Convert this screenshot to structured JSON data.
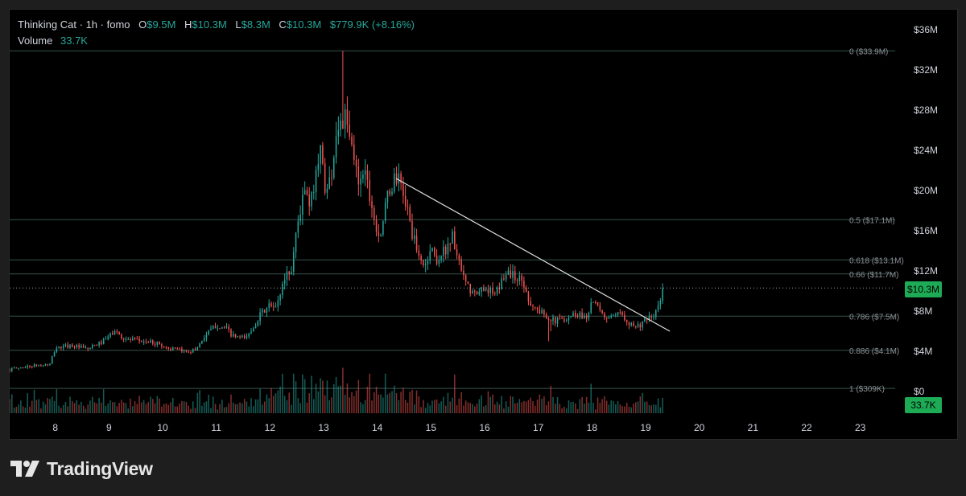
{
  "legend": {
    "symbol": "Thinking Cat",
    "interval": "1h",
    "source": "fomo",
    "open_key": "O",
    "open": "$9.5M",
    "high_key": "H",
    "high": "$10.3M",
    "low_key": "L",
    "low": "$8.3M",
    "close_key": "C",
    "close": "$10.3M",
    "change": "$779.9K (+8.16%)",
    "volume_label": "Volume",
    "volume": "33.7K"
  },
  "colors": {
    "up": "#26a69a",
    "down": "#ef5350",
    "background": "#000000",
    "page_background": "#1e1e1e",
    "fib_line": "#35524b",
    "trend_line": "#e0e0e0",
    "label_green": "#1dab55"
  },
  "badges": {
    "price": "$10.3M",
    "volume": "33.7K"
  },
  "brand": {
    "name": "TradingView",
    "logo": "tradingview-logo-icon"
  },
  "chart_data": {
    "type": "candlestick",
    "interval_hours": 1,
    "y_axis": {
      "unit": "USD market cap",
      "range": [
        0,
        36000000
      ],
      "ticks": [
        0,
        4000000,
        8000000,
        12000000,
        16000000,
        20000000,
        24000000,
        28000000,
        32000000,
        36000000
      ],
      "tick_labels": [
        "$0",
        "$4M",
        "$8M",
        "$12M",
        "$16M",
        "$20M",
        "$24M",
        "$28M",
        "$32M",
        "$36M"
      ]
    },
    "x_axis": {
      "range_days": [
        7.15,
        23.65
      ],
      "ticks": [
        8,
        9,
        10,
        11,
        12,
        13,
        14,
        15,
        16,
        17,
        18,
        19,
        20,
        21,
        22,
        23
      ],
      "tick_labels": [
        "8",
        "9",
        "10",
        "11",
        "12",
        "13",
        "14",
        "15",
        "16",
        "17",
        "18",
        "19",
        "20",
        "21",
        "22",
        "23"
      ]
    },
    "fib_levels": [
      {
        "level": "0",
        "price_label": "$33.9M",
        "value": 33900000
      },
      {
        "level": "0.5",
        "price_label": "$17.1M",
        "value": 17100000
      },
      {
        "level": "0.618",
        "price_label": "$13.1M",
        "value": 13100000
      },
      {
        "level": "0.66",
        "price_label": "$11.7M",
        "value": 11700000
      },
      {
        "level": "0.786",
        "price_label": "$7.5M",
        "value": 7500000
      },
      {
        "level": "0.886",
        "price_label": "$4.1M",
        "value": 4100000
      },
      {
        "level": "1",
        "price_label": "$309K",
        "value": 309000
      }
    ],
    "trend_line": {
      "from": {
        "day": 14.35,
        "value": 21200000
      },
      "to": {
        "day": 19.45,
        "value": 6000000
      }
    },
    "last_price": 10300000,
    "volume_axis_max": 145000,
    "price_path": [
      [
        7.15,
        2.2
      ],
      [
        7.5,
        2.5
      ],
      [
        7.9,
        2.7
      ],
      [
        8.0,
        4.3
      ],
      [
        8.3,
        4.6
      ],
      [
        8.6,
        4.2
      ],
      [
        8.9,
        5.0
      ],
      [
        9.1,
        6.0
      ],
      [
        9.3,
        5.2
      ],
      [
        9.6,
        5.0
      ],
      [
        9.9,
        4.8
      ],
      [
        10.1,
        4.3
      ],
      [
        10.4,
        4.0
      ],
      [
        10.6,
        4.1
      ],
      [
        10.8,
        5.6
      ],
      [
        11.0,
        6.6
      ],
      [
        11.2,
        6.2
      ],
      [
        11.3,
        5.5
      ],
      [
        11.5,
        5.3
      ],
      [
        11.6,
        5.6
      ],
      [
        11.8,
        7.5
      ],
      [
        12.0,
        8.6
      ],
      [
        12.1,
        8.1
      ],
      [
        12.3,
        11.8
      ],
      [
        12.4,
        12.0
      ],
      [
        12.5,
        16.5
      ],
      [
        12.65,
        20.0
      ],
      [
        12.75,
        18.0
      ],
      [
        12.85,
        22.0
      ],
      [
        12.95,
        24.0
      ],
      [
        13.05,
        19.5
      ],
      [
        13.15,
        22.0
      ],
      [
        13.25,
        26.5
      ],
      [
        13.4,
        27.0
      ],
      [
        13.55,
        23.5
      ],
      [
        13.65,
        21.0
      ],
      [
        13.75,
        22.5
      ],
      [
        13.85,
        20.0
      ],
      [
        13.95,
        17.0
      ],
      [
        14.05,
        15.5
      ],
      [
        14.2,
        19.5
      ],
      [
        14.35,
        21.5
      ],
      [
        14.5,
        19.5
      ],
      [
        14.6,
        17.0
      ],
      [
        14.75,
        13.5
      ],
      [
        14.9,
        12.5
      ],
      [
        15.0,
        14.5
      ],
      [
        15.1,
        13.0
      ],
      [
        15.25,
        14.0
      ],
      [
        15.4,
        15.5
      ],
      [
        15.55,
        12.0
      ],
      [
        15.7,
        10.2
      ],
      [
        15.85,
        9.5
      ],
      [
        16.0,
        10.5
      ],
      [
        16.2,
        9.5
      ],
      [
        16.4,
        12.0
      ],
      [
        16.55,
        11.5
      ],
      [
        16.7,
        11.0
      ],
      [
        16.85,
        8.8
      ],
      [
        17.0,
        8.0
      ],
      [
        17.15,
        7.6
      ],
      [
        17.3,
        7.0
      ],
      [
        17.5,
        7.3
      ],
      [
        17.7,
        7.8
      ],
      [
        17.9,
        7.4
      ],
      [
        18.0,
        9.2
      ],
      [
        18.2,
        7.5
      ],
      [
        18.4,
        7.3
      ],
      [
        18.55,
        7.8
      ],
      [
        18.7,
        6.8
      ],
      [
        18.85,
        6.5
      ],
      [
        19.0,
        7.0
      ],
      [
        19.15,
        7.5
      ],
      [
        19.25,
        8.6
      ],
      [
        19.35,
        10.3
      ]
    ],
    "spikes": [
      {
        "day": 13.35,
        "high": 33.9
      },
      {
        "day": 17.2,
        "low": 5.0
      },
      {
        "day": 17.25,
        "low": 6.0
      }
    ],
    "volume_spikes": [
      {
        "day": 13.35,
        "value": 100000
      },
      {
        "day": 15.45,
        "value": 85000
      },
      {
        "day": 17.25,
        "value": 60000
      },
      {
        "day": 12.65,
        "value": 75000
      },
      {
        "day": 13.05,
        "value": 72000
      },
      {
        "day": 12.15,
        "value": 50000
      },
      {
        "day": 12.9,
        "value": 48000
      },
      {
        "day": 13.6,
        "value": 50000
      },
      {
        "day": 14.75,
        "value": 50000
      },
      {
        "day": 16.05,
        "value": 48000
      },
      {
        "day": 19.35,
        "value": 33700
      }
    ]
  }
}
